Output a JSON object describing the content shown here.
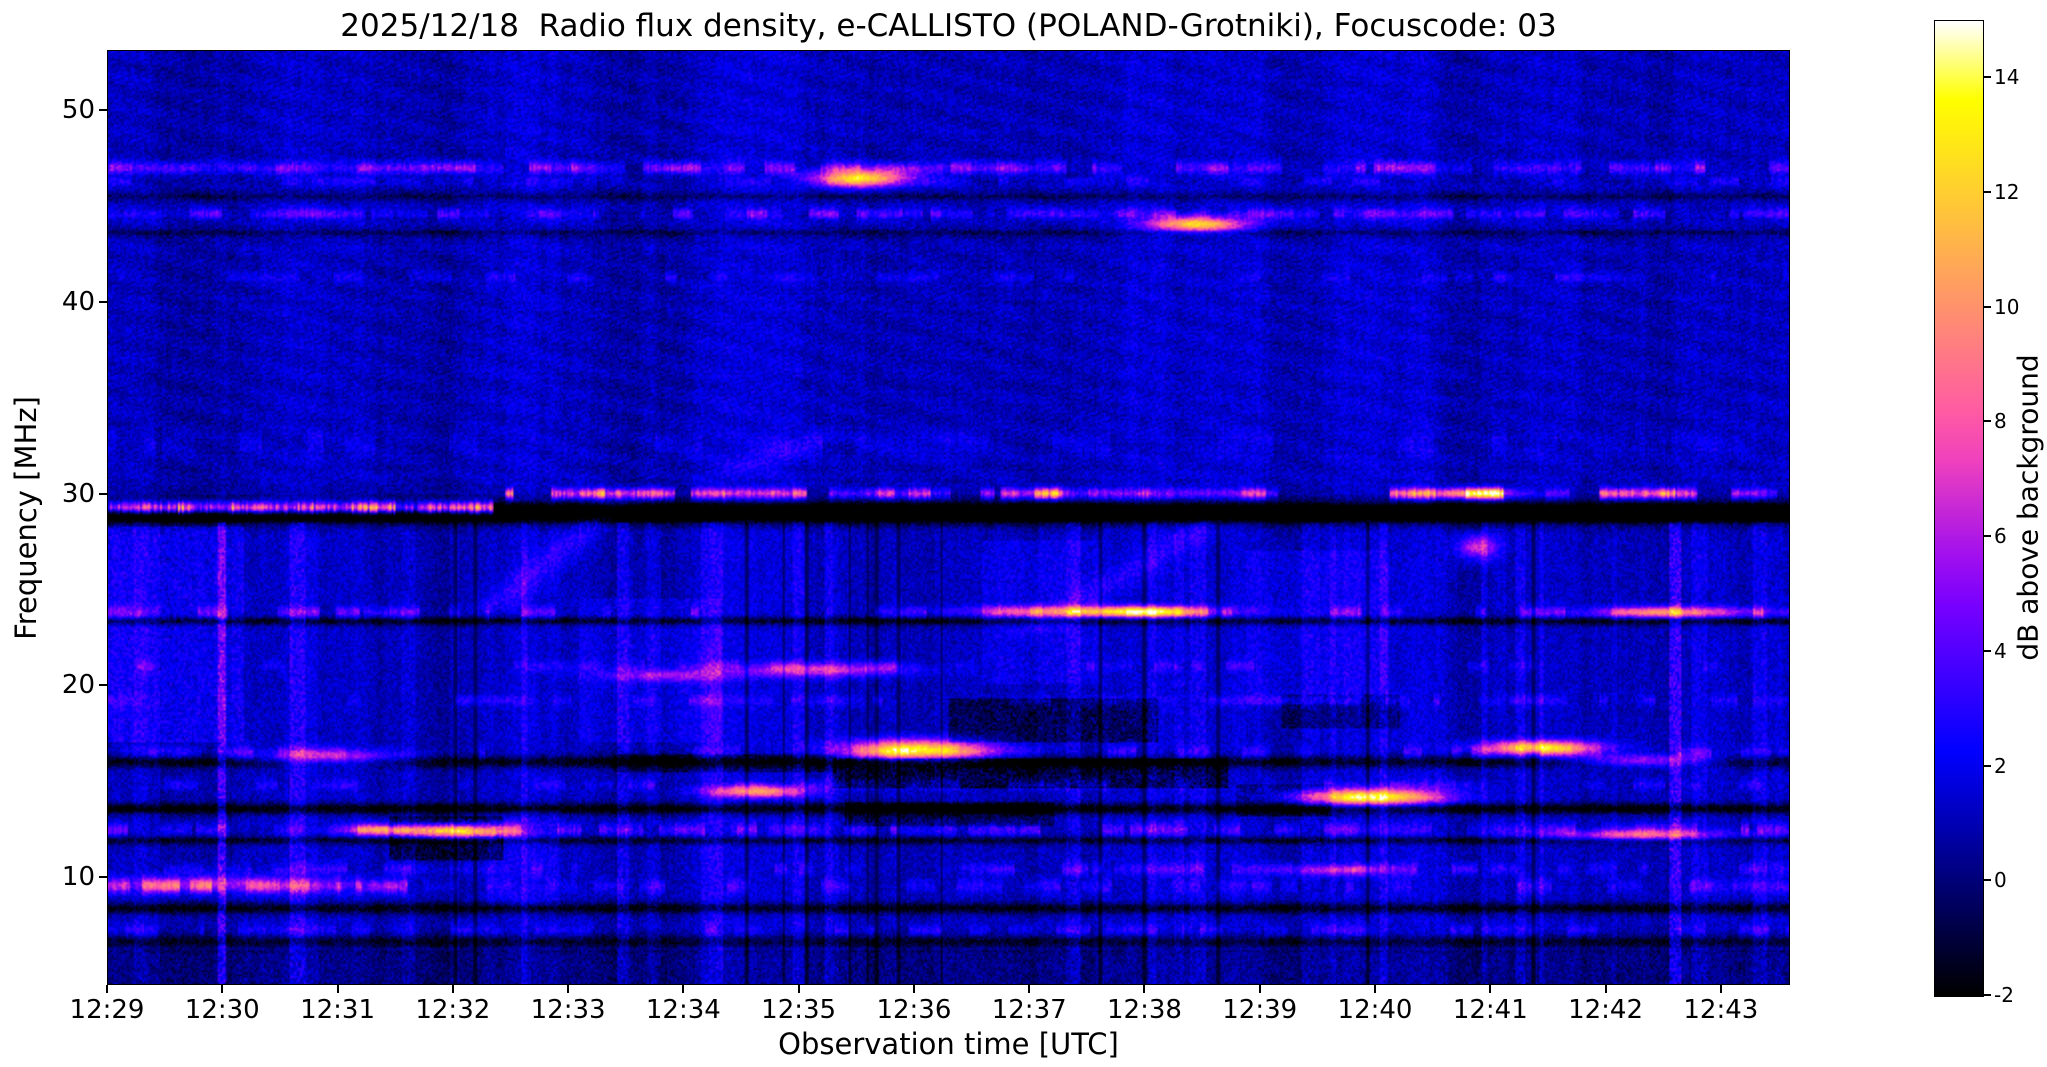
{
  "figure": {
    "background": "#ffffff",
    "text_color": "#000000",
    "axis_color": "#000000"
  },
  "chart_data": {
    "type": "heatmap",
    "title": "2025/12/18  Radio flux density, e-CALLISTO (POLAND-Grotniki), Focuscode: 03",
    "xlabel": "Observation time [UTC]",
    "ylabel": "Frequency [MHz]",
    "x_ticks": [
      "12:29",
      "12:30",
      "12:31",
      "12:32",
      "12:33",
      "12:34",
      "12:35",
      "12:36",
      "12:37",
      "12:38",
      "12:39",
      "12:40",
      "12:41",
      "12:42",
      "12:43"
    ],
    "x_range_minutes": [
      0,
      14.6
    ],
    "y_ticks": [
      10,
      20,
      30,
      40,
      50
    ],
    "y_range_mhz": [
      4.4,
      53.1
    ],
    "grid": false,
    "colorbar": {
      "label": "dB above background",
      "ticks": [
        -2,
        0,
        2,
        4,
        6,
        8,
        10,
        12,
        14
      ],
      "range": [
        -2,
        15
      ],
      "colormap": "gnuplot2",
      "stops": [
        [
          0.0,
          "#000000"
        ],
        [
          0.125,
          "#000080"
        ],
        [
          0.25,
          "#0000ff"
        ],
        [
          0.32,
          "#3800ff"
        ],
        [
          0.4,
          "#7800ff"
        ],
        [
          0.45,
          "#a00fef"
        ],
        [
          0.5,
          "#c729d6"
        ],
        [
          0.55,
          "#ef42bd"
        ],
        [
          0.6,
          "#ff5ca3"
        ],
        [
          0.65,
          "#ff758a"
        ],
        [
          0.7,
          "#ff8f70"
        ],
        [
          0.75,
          "#ffa857"
        ],
        [
          0.8,
          "#ffc23d"
        ],
        [
          0.85,
          "#ffdb24"
        ],
        [
          0.9,
          "#fff50a"
        ],
        [
          0.92,
          "#ffff00"
        ],
        [
          1.0,
          "#ffffff"
        ]
      ]
    },
    "noise": {
      "seed": 42,
      "base": -0.4,
      "speckle": 1.7,
      "low_fmax": 28.5,
      "ripple_fmin": 30.5,
      "ripple_amp": 0.8
    },
    "bands": [
      {
        "f": 47.0,
        "sigma": 0.22,
        "amp": [
          1.2,
          4.5
        ],
        "cover": 0.85,
        "t0": 0,
        "t1": 14.6
      },
      {
        "f": 46.3,
        "sigma": 0.15,
        "amp": [
          0.8,
          2.0
        ],
        "cover": 0.5,
        "t0": 0,
        "t1": 14.6
      },
      {
        "f": 44.6,
        "sigma": 0.2,
        "amp": [
          1.0,
          3.5
        ],
        "cover": 0.7,
        "t0": 0,
        "t1": 14.6
      },
      {
        "f": 41.3,
        "sigma": 0.18,
        "amp": [
          0.6,
          1.8
        ],
        "cover": 0.45,
        "t0": 0,
        "t1": 14.6
      },
      {
        "f": 32.6,
        "sigma": 0.5,
        "amp": [
          0.4,
          1.2
        ],
        "cover": 0.5,
        "t0": 0,
        "t1": 14.6
      },
      {
        "f": 30.0,
        "sigma": 0.2,
        "amp": [
          5,
          13
        ],
        "cover": 0.72,
        "t0": 3.35,
        "t1": 14.6,
        "segs": [
          [
            3.35,
            4.45,
            1.0
          ],
          [
            4.45,
            6.3,
            0.75
          ],
          [
            6.3,
            7.3,
            0.5
          ],
          [
            7.3,
            8.4,
            0.8
          ],
          [
            8.4,
            10.7,
            0.45
          ],
          [
            10.7,
            12.2,
            0.85
          ],
          [
            12.2,
            12.9,
            0.5
          ],
          [
            12.9,
            14.0,
            0.95
          ],
          [
            14.0,
            14.6,
            0.5
          ]
        ]
      },
      {
        "f": 29.25,
        "sigma": 0.22,
        "amp": [
          8,
          14
        ],
        "cover": 0.9,
        "t0": 0,
        "t1": 3.35
      },
      {
        "f": 23.8,
        "sigma": 0.22,
        "amp": [
          1.0,
          3.2
        ],
        "cover": 0.55,
        "t0": 0,
        "t1": 14.6
      },
      {
        "f": 21.0,
        "sigma": 0.2,
        "amp": [
          0.8,
          2.0
        ],
        "cover": 0.4,
        "t0": 0,
        "t1": 14.6
      },
      {
        "f": 19.2,
        "sigma": 0.2,
        "amp": [
          0.8,
          2.2
        ],
        "cover": 0.5,
        "t0": 0,
        "t1": 14.6
      },
      {
        "f": 16.5,
        "sigma": 0.25,
        "amp": [
          0.9,
          2.6
        ],
        "cover": 0.5,
        "t0": 0,
        "t1": 14.6
      },
      {
        "f": 14.8,
        "sigma": 0.2,
        "amp": [
          0.8,
          2.0
        ],
        "cover": 0.45,
        "t0": 0,
        "t1": 14.6
      },
      {
        "f": 12.45,
        "sigma": 0.24,
        "amp": [
          1.2,
          3.5
        ],
        "cover": 0.6,
        "t0": 0,
        "t1": 14.6
      },
      {
        "f": 10.4,
        "sigma": 0.22,
        "amp": [
          0.9,
          2.4
        ],
        "cover": 0.5,
        "t0": 0,
        "t1": 14.6
      },
      {
        "f": 9.5,
        "sigma": 0.26,
        "amp": [
          1.5,
          5.0
        ],
        "cover": 0.75,
        "t0": 0,
        "t1": 2.6
      },
      {
        "f": 9.5,
        "sigma": 0.26,
        "amp": [
          0.9,
          2.6
        ],
        "cover": 0.45,
        "t0": 2.6,
        "t1": 14.6
      },
      {
        "f": 7.2,
        "sigma": 0.22,
        "amp": [
          0.8,
          2.2
        ],
        "cover": 0.5,
        "t0": 0,
        "t1": 14.6
      }
    ],
    "dark_bands": [
      {
        "f": 29.0,
        "sigma": 0.38,
        "amp": 6
      },
      {
        "f": 23.35,
        "sigma": 0.15,
        "amp": 3
      },
      {
        "f": 16.0,
        "sigma": 0.22,
        "amp": 3
      },
      {
        "f": 13.55,
        "sigma": 0.2,
        "amp": 3.5
      },
      {
        "f": 11.9,
        "sigma": 0.15,
        "amp": 2.5
      },
      {
        "f": 8.35,
        "sigma": 0.2,
        "amp": 3
      },
      {
        "f": 6.6,
        "sigma": 0.25,
        "amp": 2.5
      },
      {
        "f": 45.5,
        "sigma": 0.15,
        "amp": 1.5
      },
      {
        "f": 43.6,
        "sigma": 0.15,
        "amp": 1.5
      }
    ],
    "blobs": [
      {
        "t": 6.55,
        "f": 46.45,
        "amp": 12,
        "st": 0.28,
        "sf": 0.3
      },
      {
        "t": 9.45,
        "f": 44.05,
        "amp": 11,
        "st": 0.3,
        "sf": 0.28
      },
      {
        "t": 7.0,
        "f": 16.6,
        "amp": 13,
        "st": 0.42,
        "sf": 0.38
      },
      {
        "t": 10.95,
        "f": 14.15,
        "amp": 13,
        "st": 0.45,
        "sf": 0.3
      },
      {
        "t": 12.45,
        "f": 16.75,
        "amp": 11,
        "st": 0.35,
        "sf": 0.26
      },
      {
        "t": 13.35,
        "f": 16.05,
        "amp": 7,
        "st": 0.45,
        "sf": 0.22
      },
      {
        "t": 5.65,
        "f": 14.45,
        "amp": 9,
        "st": 0.3,
        "sf": 0.22
      },
      {
        "t": 3.05,
        "f": 12.35,
        "amp": 11,
        "st": 0.32,
        "sf": 0.26
      },
      {
        "t": 2.35,
        "f": 12.45,
        "amp": 7,
        "st": 0.25,
        "sf": 0.2
      },
      {
        "t": 1.95,
        "f": 16.2,
        "amp": 6,
        "st": 0.45,
        "sf": 0.28
      },
      {
        "t": 6.2,
        "f": 20.8,
        "amp": 6,
        "st": 0.5,
        "sf": 0.26
      },
      {
        "t": 4.85,
        "f": 20.5,
        "amp": 4,
        "st": 0.4,
        "sf": 0.22
      },
      {
        "t": 13.3,
        "f": 12.15,
        "amp": 7,
        "st": 0.5,
        "sf": 0.2
      },
      {
        "t": 10.65,
        "f": 10.35,
        "amp": 5,
        "st": 0.3,
        "sf": 0.2
      },
      {
        "t": 0.9,
        "f": 9.6,
        "amp": 5,
        "st": 0.6,
        "sf": 0.3
      },
      {
        "t": 11.9,
        "f": 27.2,
        "amp": 6,
        "st": 0.12,
        "sf": 0.45
      },
      {
        "t": 8.6,
        "f": 23.85,
        "amp": 8,
        "st": 0.7,
        "sf": 0.2
      },
      {
        "t": 13.6,
        "f": 23.8,
        "amp": 8,
        "st": 0.5,
        "sf": 0.2
      },
      {
        "t": 9.0,
        "f": 23.8,
        "amp": 6,
        "st": 0.3,
        "sf": 0.2
      },
      {
        "t": 12.0,
        "f": 30.0,
        "amp": 5,
        "st": 0.25,
        "sf": 0.2
      }
    ],
    "streaks": [
      {
        "t0": 3.25,
        "f0": 23.5,
        "t1": 4.55,
        "f1": 30.2,
        "amp": 1.8,
        "st": 0.14
      },
      {
        "t0": 7.9,
        "f0": 22.3,
        "t1": 9.7,
        "f1": 29.0,
        "amp": 1.4,
        "st": 0.16
      },
      {
        "t0": 5.2,
        "f0": 30.6,
        "t1": 6.4,
        "f1": 33.5,
        "amp": 1.2,
        "st": 0.18
      }
    ],
    "blocks": [
      {
        "t0": 6.3,
        "t1": 9.7,
        "f0": 14.6,
        "f1": 16.2,
        "s": -2.2
      },
      {
        "t0": 7.3,
        "t1": 9.1,
        "f0": 17.0,
        "f1": 19.3,
        "s": -1.8
      },
      {
        "t0": 2.45,
        "t1": 3.4,
        "f0": 10.9,
        "f1": 13.2,
        "s": -2.0
      },
      {
        "t0": 4.4,
        "t1": 6.3,
        "f0": 15.5,
        "f1": 16.4,
        "s": -1.4
      },
      {
        "t0": 9.8,
        "t1": 10.6,
        "f0": 13.2,
        "f1": 14.8,
        "s": -1.4
      },
      {
        "t0": 10.2,
        "t1": 11.2,
        "f0": 17.8,
        "f1": 19.5,
        "s": -1.4
      },
      {
        "t0": 6.4,
        "t1": 8.2,
        "f0": 12.6,
        "f1": 13.9,
        "s": -1.5
      },
      {
        "t0": 0.0,
        "t1": 14.6,
        "f0": 4.4,
        "f1": 6.2,
        "s": -1.0
      },
      {
        "t0": 0.0,
        "t1": 1.15,
        "f0": 17.0,
        "f1": 28.3,
        "s": 1.3
      },
      {
        "t0": 4.1,
        "t1": 5.3,
        "f0": 17.0,
        "f1": 24.5,
        "s": 0.8
      },
      {
        "t0": 7.6,
        "t1": 8.6,
        "f0": 20.0,
        "f1": 27.5,
        "s": 0.9
      },
      {
        "t0": 9.9,
        "t1": 11.1,
        "f0": 19.0,
        "f1": 27.0,
        "s": 0.8
      },
      {
        "t0": 3.3,
        "t1": 3.9,
        "f0": 8.5,
        "f1": 13.5,
        "s": 0.7
      }
    ]
  }
}
